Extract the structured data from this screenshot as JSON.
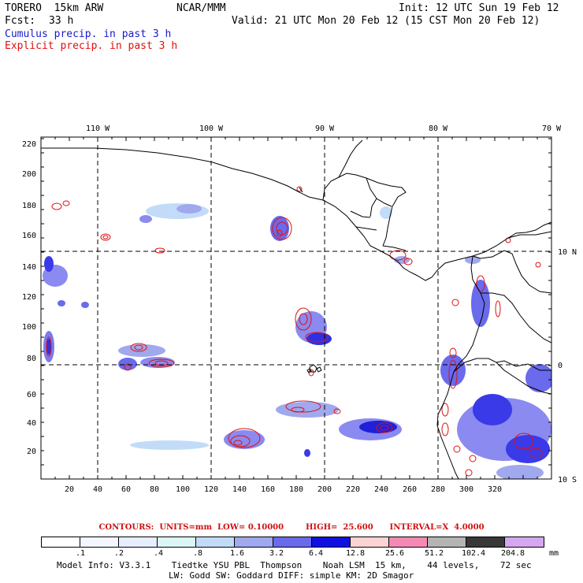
{
  "header": {
    "model": "TORERO  15km ARW",
    "center": "NCAR/MMM",
    "init": "Init: 12 UTC Sun 19 Feb 12",
    "fcst_label": "Fcst:",
    "fcst_value": "33 h",
    "valid": "Valid: 21 UTC Mon 20 Feb 12 (15 CST Mon 20 Feb 12)",
    "field1": "Cumulus precip. in past 3 h",
    "field2": "Explicit precip. in past 3 h"
  },
  "map": {
    "top_lon_labels": [
      "110 W",
      "100 W",
      "90 W",
      "80 W",
      "70 W"
    ],
    "right_lat_labels": [
      "10 N",
      "0",
      "10 S"
    ],
    "x_ticks": [
      "20",
      "40",
      "60",
      "80",
      "100",
      "120",
      "140",
      "160",
      "180",
      "200",
      "220",
      "240",
      "260",
      "280",
      "300",
      "320"
    ],
    "y_ticks": [
      "20",
      "40",
      "60",
      "80",
      "100",
      "120",
      "140",
      "160",
      "180",
      "200",
      "220"
    ],
    "colors": {
      "coast": "#000000",
      "grid": "#000000",
      "cumulus": "#3a3ae8",
      "explicit": "#e01010"
    }
  },
  "contours": {
    "text": "CONTOURS:  UNITS=mm  LOW= 0.10000        HIGH=  25.600      INTERVAL=X  4.0000"
  },
  "legend": {
    "labels": [
      ".1",
      ".2",
      ".4",
      ".8",
      "1.6",
      "3.2",
      "6.4",
      "12.8",
      "25.6",
      "51.2",
      "102.4",
      "204.8"
    ],
    "units": "mm",
    "colors": [
      "#ffffff",
      "#f4f6ff",
      "#e6eeff",
      "#dcf6f6",
      "#c2dcf8",
      "#a0a8ee",
      "#6a6aec",
      "#1010e0",
      "#fcd4d4",
      "#f48ab4",
      "#b4b4b4",
      "#383838",
      "#d4a8f0"
    ]
  },
  "footer": {
    "line1": "Model Info: V3.3.1    Tiedtke YSU PBL  Thompson    Noah LSM  15 km,    44 levels,    72 sec",
    "line2": "LW: Godd SW: Goddard DIFF: simple KM: 2D Smagor"
  }
}
